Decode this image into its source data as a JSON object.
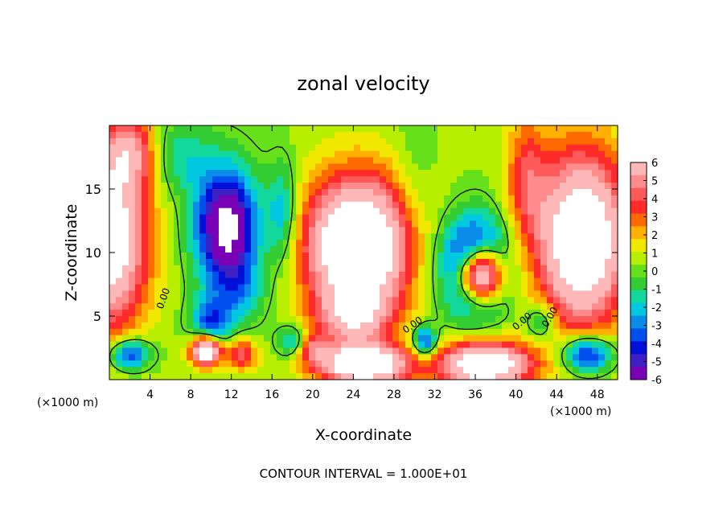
{
  "chart_data": {
    "type": "heatmap",
    "title": "zonal velocity",
    "xlabel": "X-coordinate",
    "ylabel": "Z-coordinate",
    "x_unit": "(×1000 m)",
    "x_unit_right": "(×1000 m)",
    "footer": "CONTOUR INTERVAL = 1.000E+01",
    "xlim": [
      0,
      50
    ],
    "ylim": [
      0,
      20
    ],
    "x_ticks": [
      4,
      8,
      12,
      16,
      20,
      24,
      28,
      32,
      36,
      40,
      44,
      48
    ],
    "y_ticks": [
      5,
      10,
      15
    ],
    "colorbar": {
      "range": [
        -6,
        6
      ],
      "ticks": [
        6,
        5,
        4,
        3,
        2,
        1,
        0,
        -1,
        -2,
        -3,
        -4,
        -5,
        -6
      ],
      "colors": [
        "#7a00b8",
        "#3d1fc4",
        "#0010d8",
        "#0050f0",
        "#0a8ce8",
        "#00c8e0",
        "#12d89c",
        "#33cc33",
        "#66e01a",
        "#b8ee00",
        "#f0e800",
        "#ffb000",
        "#ff6a00",
        "#ff2a2a",
        "#ff5a5a",
        "#ff8c8c",
        "#ffb8b8"
      ],
      "out_of_range": "#ffffff"
    },
    "contour_labels": [
      "0.00",
      "0.00",
      "0.00",
      "0.00"
    ],
    "field_blobs": [
      {
        "x": 0,
        "z": 11,
        "sx": 3.8,
        "sz": 7,
        "v": 8
      },
      {
        "x": 2,
        "z": 18,
        "sx": 2.5,
        "sz": 3,
        "v": 4
      },
      {
        "x": 11.5,
        "z": 12,
        "sx": 3,
        "sz": 4.5,
        "v": -8
      },
      {
        "x": 10,
        "z": 4.5,
        "sx": 2,
        "sz": 2,
        "v": -4
      },
      {
        "x": 7,
        "z": 17.5,
        "sx": 3,
        "sz": 3,
        "v": -2
      },
      {
        "x": 13,
        "z": 7,
        "sx": 2.5,
        "sz": 2.5,
        "v": -2
      },
      {
        "x": 24.5,
        "z": 10.5,
        "sx": 5.2,
        "sz": 5.5,
        "v": 10
      },
      {
        "x": 17,
        "z": 13,
        "sx": 1.5,
        "sz": 4,
        "v": -3
      },
      {
        "x": 24,
        "z": 5,
        "sx": 3.5,
        "sz": 2,
        "v": 4
      },
      {
        "x": 36,
        "z": 8.8,
        "sx": 3.2,
        "sz": 3.6,
        "v": -9
      },
      {
        "x": 36.5,
        "z": 8.3,
        "sx": 2.2,
        "sz": 2.2,
        "v": 14
      },
      {
        "x": 46.5,
        "z": 11,
        "sx": 4.5,
        "sz": 7,
        "v": 9
      },
      {
        "x": 41,
        "z": 16,
        "sx": 2,
        "sz": 5,
        "v": 3
      },
      {
        "x": 30,
        "z": 15,
        "sx": 2,
        "sz": 6,
        "v": -1
      },
      {
        "x": 42.5,
        "z": 4.5,
        "sx": 1.5,
        "sz": 1.5,
        "v": -3
      },
      {
        "x": 20,
        "z": 2.5,
        "sx": 1.5,
        "sz": 1.2,
        "v": 3
      },
      {
        "x": 25,
        "z": 1.2,
        "sx": 4.5,
        "sz": 1.6,
        "v": 9
      },
      {
        "x": 37,
        "z": 1.2,
        "sx": 4.5,
        "sz": 1.8,
        "v": 9
      },
      {
        "x": 9.5,
        "z": 2.3,
        "sx": 1.5,
        "sz": 1.2,
        "v": 9
      },
      {
        "x": 13,
        "z": 2,
        "sx": 1.5,
        "sz": 1.3,
        "v": 4
      },
      {
        "x": 2,
        "z": 2,
        "sx": 2,
        "sz": 1.2,
        "v": -5
      },
      {
        "x": 47,
        "z": 2,
        "sx": 2.5,
        "sz": 1.5,
        "v": -6
      },
      {
        "x": 31,
        "z": 3,
        "sx": 1.2,
        "sz": 1.2,
        "v": -5
      },
      {
        "x": 18,
        "z": 3,
        "sx": 1.5,
        "sz": 1.2,
        "v": -3
      }
    ]
  }
}
